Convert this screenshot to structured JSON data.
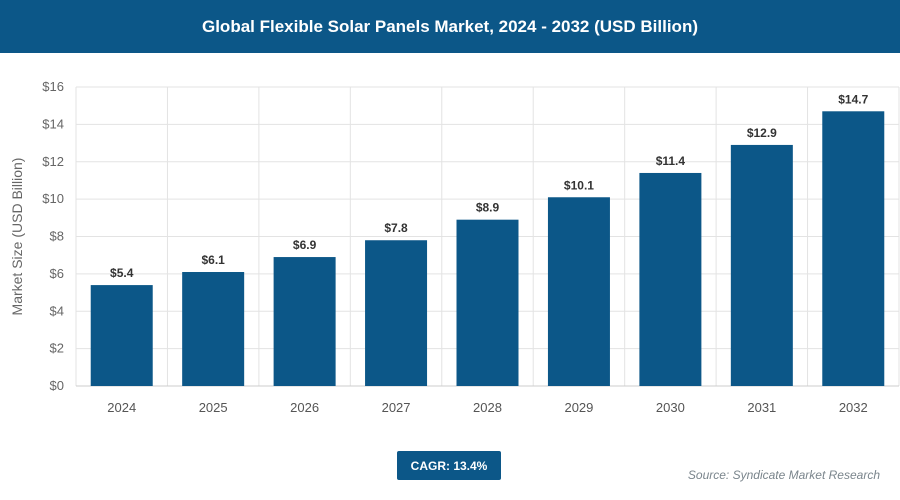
{
  "chart_data": {
    "type": "bar",
    "title": "Global Flexible Solar Panels Market, 2024 - 2032 (USD Billion)",
    "xlabel": "",
    "ylabel": "Market Size (USD Billion)",
    "categories": [
      "2024",
      "2025",
      "2026",
      "2027",
      "2028",
      "2029",
      "2030",
      "2031",
      "2032"
    ],
    "values": [
      5.4,
      6.1,
      6.9,
      7.8,
      8.9,
      10.1,
      11.4,
      12.9,
      14.7
    ],
    "data_labels": [
      "$5.4",
      "$6.1",
      "$6.9",
      "$7.8",
      "$8.9",
      "$10.1",
      "$11.4",
      "$12.9",
      "$14.7"
    ],
    "ylim": [
      0,
      16
    ],
    "yticks": [
      0,
      2,
      4,
      6,
      8,
      10,
      12,
      14,
      16
    ],
    "ytick_labels": [
      "$0",
      "$2",
      "$4",
      "$6",
      "$8",
      "$10",
      "$12",
      "$14",
      "$16"
    ],
    "grid": true,
    "bar_color": "#0c5788"
  },
  "footer": {
    "cagr": "CAGR: 13.4%",
    "source": "Source: Syndicate Market Research"
  }
}
